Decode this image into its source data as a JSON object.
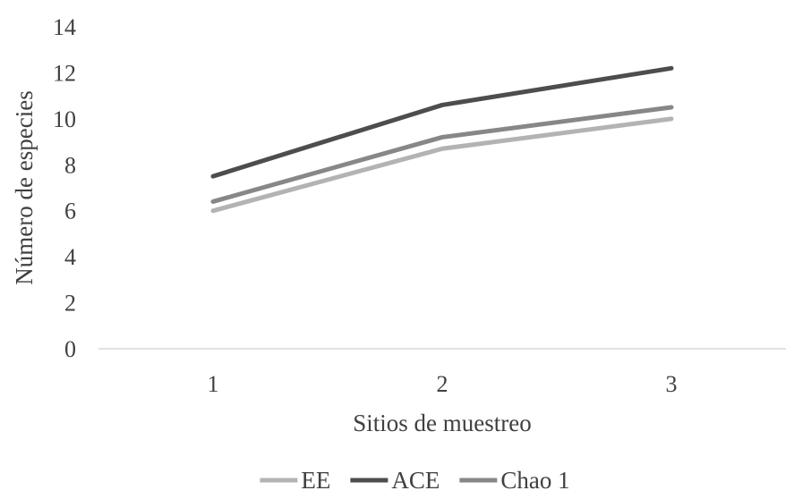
{
  "chart_data": {
    "type": "line",
    "title": "",
    "xlabel": "Sitios de muestreo",
    "ylabel": "Número de especies",
    "categories": [
      "1",
      "2",
      "3"
    ],
    "ylim": [
      0,
      14
    ],
    "yticks": [
      "0",
      "2",
      "4",
      "6",
      "8",
      "10",
      "12",
      "14"
    ],
    "grid": false,
    "legend_position": "bottom",
    "series": [
      {
        "name": "EE",
        "values": [
          6.0,
          8.7,
          10.0
        ],
        "color": "#b3b3b3"
      },
      {
        "name": "ACE",
        "values": [
          7.5,
          10.6,
          12.2
        ],
        "color": "#4d4d4d"
      },
      {
        "name": "Chao 1",
        "values": [
          6.4,
          9.2,
          10.5
        ],
        "color": "#878787"
      }
    ]
  }
}
